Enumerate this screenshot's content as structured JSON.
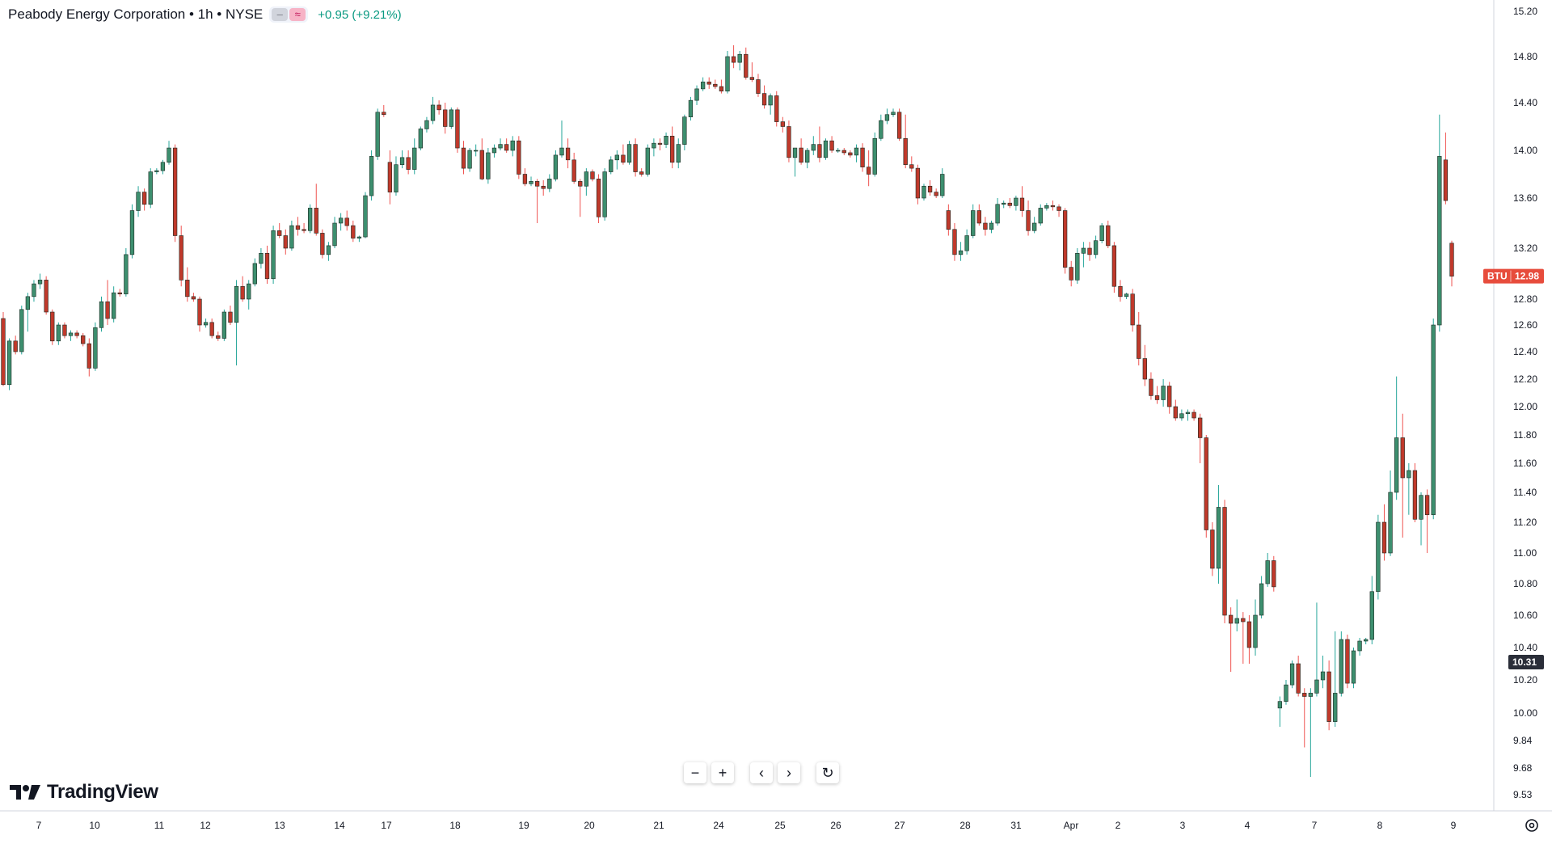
{
  "header": {
    "title": "Peabody Energy Corporation • 1h • NYSE",
    "change": "+0.95 (+9.21%)",
    "pill_icons": [
      "minus-icon",
      "approx-icon"
    ]
  },
  "logo": {
    "text": "TradingView"
  },
  "toolbar": [
    {
      "name": "zoom-out-button",
      "icon": "minus-icon",
      "glyph": "−"
    },
    {
      "name": "zoom-in-button",
      "icon": "plus-icon",
      "glyph": "+"
    },
    {
      "name": "scroll-left-button",
      "icon": "chevron-left-icon",
      "glyph": "‹"
    },
    {
      "name": "scroll-right-button",
      "icon": "chevron-right-icon",
      "glyph": "›"
    },
    {
      "name": "reset-chart-button",
      "icon": "reset-icon",
      "glyph": "↻"
    }
  ],
  "settings": {
    "icon": "gear-icon"
  },
  "chart_data": {
    "type": "candlestick",
    "symbol": "BTU",
    "interval": "1h",
    "exchange": "NYSE",
    "price_axis": {
      "ylim": [
        9.45,
        15.3
      ],
      "ticks": [
        "15.20",
        "14.80",
        "14.40",
        "14.00",
        "13.60",
        "13.20",
        "12.80",
        "12.60",
        "12.40",
        "12.20",
        "12.00",
        "11.80",
        "11.60",
        "11.40",
        "11.20",
        "11.00",
        "10.80",
        "10.60",
        "10.40",
        "10.20",
        "10.00",
        "9.84",
        "9.68",
        "9.53"
      ]
    },
    "time_axis": {
      "labels": [
        "7",
        "10",
        "11",
        "12",
        "13",
        "14",
        "17",
        "18",
        "19",
        "20",
        "21",
        "24",
        "25",
        "26",
        "27",
        "28",
        "31",
        "Apr",
        "2",
        "3",
        "4",
        "7",
        "8",
        "9"
      ]
    },
    "last_price_label": {
      "symbol": "BTU",
      "value": "12.98",
      "color": "#e74c3c"
    },
    "crosshair_price_label": {
      "value": "10.31"
    },
    "colors": {
      "up": "#26a69a",
      "down": "#ef5350",
      "up_fill": "#3d8f6f",
      "down_fill": "#c0392b"
    },
    "grid": false,
    "candles": [
      [
        12.65,
        12.7,
        12.15,
        12.16
      ],
      [
        12.16,
        12.5,
        12.12,
        12.48
      ],
      [
        12.48,
        12.52,
        12.38,
        12.4
      ],
      [
        12.4,
        12.75,
        12.38,
        12.72
      ],
      [
        12.72,
        12.85,
        12.55,
        12.82
      ],
      [
        12.82,
        12.95,
        12.78,
        12.92
      ],
      [
        12.92,
        13.0,
        12.88,
        12.95
      ],
      [
        12.95,
        12.98,
        12.68,
        12.7
      ],
      [
        12.7,
        12.72,
        12.45,
        12.48
      ],
      [
        12.48,
        12.62,
        12.45,
        12.6
      ],
      [
        12.6,
        12.62,
        12.5,
        12.52
      ],
      [
        12.52,
        12.56,
        12.48,
        12.54
      ],
      [
        12.54,
        12.56,
        12.5,
        12.52
      ],
      [
        12.52,
        12.54,
        12.44,
        12.46
      ],
      [
        12.46,
        12.5,
        12.22,
        12.28
      ],
      [
        12.28,
        12.62,
        12.26,
        12.58
      ],
      [
        12.58,
        12.82,
        12.55,
        12.78
      ],
      [
        12.78,
        12.95,
        12.6,
        12.65
      ],
      [
        12.65,
        12.9,
        12.62,
        12.85
      ],
      [
        12.85,
        12.88,
        12.82,
        12.84
      ],
      [
        12.84,
        13.2,
        12.82,
        13.15
      ],
      [
        13.15,
        13.55,
        13.12,
        13.5
      ],
      [
        13.5,
        13.7,
        13.45,
        13.65
      ],
      [
        13.65,
        13.68,
        13.5,
        13.55
      ],
      [
        13.55,
        13.85,
        13.52,
        13.82
      ],
      [
        13.82,
        13.85,
        13.8,
        13.83
      ],
      [
        13.83,
        13.92,
        13.8,
        13.9
      ],
      [
        13.9,
        14.08,
        13.88,
        14.02
      ],
      [
        14.02,
        14.05,
        13.25,
        13.3
      ],
      [
        13.3,
        13.38,
        12.9,
        12.95
      ],
      [
        12.95,
        13.05,
        12.78,
        12.82
      ],
      [
        12.82,
        12.85,
        12.78,
        12.8
      ],
      [
        12.8,
        12.82,
        12.55,
        12.6
      ],
      [
        12.6,
        12.65,
        12.58,
        12.62
      ],
      [
        12.62,
        12.65,
        12.5,
        12.52
      ],
      [
        12.52,
        12.55,
        12.48,
        12.5
      ],
      [
        12.5,
        12.72,
        12.48,
        12.7
      ],
      [
        12.7,
        12.75,
        12.6,
        12.62
      ],
      [
        12.62,
        12.95,
        12.3,
        12.9
      ],
      [
        12.9,
        12.98,
        12.78,
        12.8
      ],
      [
        12.8,
        12.95,
        12.72,
        12.92
      ],
      [
        12.92,
        13.12,
        12.9,
        13.08
      ],
      [
        13.08,
        13.2,
        13.04,
        13.16
      ],
      [
        13.16,
        13.22,
        12.92,
        12.96
      ],
      [
        12.96,
        13.38,
        12.92,
        13.34
      ],
      [
        13.34,
        13.4,
        13.28,
        13.3
      ],
      [
        13.3,
        13.35,
        13.15,
        13.2
      ],
      [
        13.2,
        13.42,
        13.18,
        13.38
      ],
      [
        13.38,
        13.45,
        13.3,
        13.35
      ],
      [
        13.35,
        13.4,
        13.32,
        13.34
      ],
      [
        13.34,
        13.55,
        13.32,
        13.52
      ],
      [
        13.52,
        13.72,
        13.3,
        13.32
      ],
      [
        13.32,
        13.35,
        13.12,
        13.15
      ],
      [
        13.15,
        13.25,
        13.1,
        13.22
      ],
      [
        13.22,
        13.45,
        13.2,
        13.4
      ],
      [
        13.4,
        13.48,
        13.34,
        13.44
      ],
      [
        13.44,
        13.5,
        13.34,
        13.38
      ],
      [
        13.38,
        13.42,
        13.25,
        13.28
      ],
      [
        13.28,
        13.3,
        13.25,
        13.29
      ],
      [
        13.29,
        13.65,
        13.28,
        13.62
      ],
      [
        13.62,
        14.0,
        13.58,
        13.95
      ],
      [
        13.95,
        14.35,
        13.92,
        14.32
      ],
      [
        14.32,
        14.38,
        14.28,
        14.3
      ],
      [
        13.9,
        14.0,
        13.55,
        13.65
      ],
      [
        13.65,
        13.95,
        13.62,
        13.88
      ],
      [
        13.88,
        14.0,
        13.85,
        13.94
      ],
      [
        13.94,
        14.0,
        13.8,
        13.84
      ],
      [
        13.84,
        14.1,
        13.8,
        14.02
      ],
      [
        14.02,
        14.2,
        14.0,
        14.18
      ],
      [
        14.18,
        14.28,
        14.15,
        14.25
      ],
      [
        14.25,
        14.45,
        14.22,
        14.38
      ],
      [
        14.38,
        14.42,
        14.3,
        14.34
      ],
      [
        14.34,
        14.4,
        14.14,
        14.2
      ],
      [
        14.2,
        14.36,
        14.18,
        14.34
      ],
      [
        14.34,
        14.36,
        13.98,
        14.02
      ],
      [
        14.02,
        14.08,
        13.8,
        13.85
      ],
      [
        13.85,
        14.02,
        13.82,
        14.0
      ],
      [
        14.0,
        14.05,
        13.95,
        14.0
      ],
      [
        14.0,
        14.1,
        13.75,
        13.76
      ],
      [
        13.76,
        14.02,
        13.72,
        13.98
      ],
      [
        13.98,
        14.05,
        13.94,
        14.02
      ],
      [
        14.02,
        14.1,
        14.0,
        14.05
      ],
      [
        14.05,
        14.1,
        13.98,
        14.0
      ],
      [
        14.0,
        14.12,
        13.95,
        14.08
      ],
      [
        14.08,
        14.12,
        13.76,
        13.8
      ],
      [
        13.8,
        13.85,
        13.7,
        13.72
      ],
      [
        13.72,
        13.78,
        13.7,
        13.74
      ],
      [
        13.74,
        13.76,
        13.4,
        13.7
      ],
      [
        13.7,
        13.75,
        13.62,
        13.68
      ],
      [
        13.68,
        13.8,
        13.65,
        13.76
      ],
      [
        13.76,
        14.0,
        13.74,
        13.96
      ],
      [
        13.96,
        14.25,
        13.94,
        14.02
      ],
      [
        14.02,
        14.1,
        13.85,
        13.92
      ],
      [
        13.92,
        13.98,
        13.72,
        13.74
      ],
      [
        13.74,
        13.76,
        13.45,
        13.7
      ],
      [
        13.7,
        13.85,
        13.62,
        13.82
      ],
      [
        13.82,
        13.84,
        13.74,
        13.76
      ],
      [
        13.76,
        13.8,
        13.4,
        13.45
      ],
      [
        13.45,
        13.85,
        13.42,
        13.82
      ],
      [
        13.82,
        13.95,
        13.8,
        13.92
      ],
      [
        13.92,
        14.0,
        13.84,
        13.96
      ],
      [
        13.96,
        14.05,
        13.88,
        13.9
      ],
      [
        13.9,
        14.08,
        13.88,
        14.05
      ],
      [
        14.05,
        14.1,
        13.78,
        13.82
      ],
      [
        13.82,
        13.85,
        13.78,
        13.8
      ],
      [
        13.8,
        14.05,
        13.78,
        14.02
      ],
      [
        14.02,
        14.1,
        13.95,
        14.06
      ],
      [
        14.06,
        14.1,
        14.0,
        14.05
      ],
      [
        14.05,
        14.15,
        14.02,
        14.12
      ],
      [
        14.12,
        14.2,
        13.85,
        13.9
      ],
      [
        13.9,
        14.1,
        13.85,
        14.05
      ],
      [
        14.05,
        14.3,
        14.0,
        14.28
      ],
      [
        14.28,
        14.45,
        14.25,
        14.42
      ],
      [
        14.42,
        14.55,
        14.38,
        14.52
      ],
      [
        14.52,
        14.62,
        14.5,
        14.58
      ],
      [
        14.58,
        14.62,
        14.52,
        14.56
      ],
      [
        14.56,
        14.6,
        14.52,
        14.54
      ],
      [
        14.54,
        14.6,
        14.48,
        14.5
      ],
      [
        14.5,
        14.85,
        14.48,
        14.8
      ],
      [
        14.8,
        14.9,
        14.7,
        14.75
      ],
      [
        14.75,
        14.85,
        14.68,
        14.82
      ],
      [
        14.82,
        14.88,
        14.6,
        14.62
      ],
      [
        14.62,
        14.75,
        14.58,
        14.6
      ],
      [
        14.6,
        14.65,
        14.45,
        14.48
      ],
      [
        14.48,
        14.55,
        14.35,
        14.38
      ],
      [
        14.38,
        14.48,
        14.3,
        14.46
      ],
      [
        14.46,
        14.5,
        14.2,
        14.24
      ],
      [
        14.24,
        14.28,
        14.15,
        14.2
      ],
      [
        14.2,
        14.25,
        13.9,
        13.94
      ],
      [
        13.94,
        14.0,
        13.78,
        14.02
      ],
      [
        14.02,
        14.1,
        13.88,
        13.9
      ],
      [
        13.9,
        14.02,
        13.85,
        14.0
      ],
      [
        14.0,
        14.12,
        13.96,
        14.05
      ],
      [
        14.05,
        14.2,
        13.9,
        13.94
      ],
      [
        13.94,
        14.1,
        13.92,
        14.08
      ],
      [
        14.08,
        14.12,
        13.98,
        14.0
      ],
      [
        14.0,
        14.02,
        13.98,
        14.0
      ],
      [
        14.0,
        14.02,
        13.96,
        13.98
      ],
      [
        13.98,
        14.0,
        13.94,
        13.96
      ],
      [
        13.96,
        14.05,
        13.9,
        14.02
      ],
      [
        14.02,
        14.06,
        13.82,
        13.86
      ],
      [
        13.86,
        14.0,
        13.7,
        13.8
      ],
      [
        13.8,
        14.15,
        13.78,
        14.1
      ],
      [
        14.1,
        14.3,
        14.08,
        14.25
      ],
      [
        14.25,
        14.35,
        14.22,
        14.3
      ],
      [
        14.3,
        14.35,
        14.28,
        14.32
      ],
      [
        14.32,
        14.35,
        14.08,
        14.1
      ],
      [
        14.1,
        14.3,
        13.85,
        13.88
      ],
      [
        13.88,
        13.95,
        13.82,
        13.85
      ],
      [
        13.85,
        13.88,
        13.55,
        13.6
      ],
      [
        13.6,
        13.72,
        13.58,
        13.7
      ],
      [
        13.7,
        13.75,
        13.62,
        13.65
      ],
      [
        13.65,
        13.68,
        13.6,
        13.62
      ],
      [
        13.62,
        13.85,
        13.6,
        13.8
      ],
      [
        13.5,
        13.55,
        13.3,
        13.35
      ],
      [
        13.35,
        13.4,
        13.1,
        13.15
      ],
      [
        13.15,
        13.25,
        13.1,
        13.18
      ],
      [
        13.18,
        13.35,
        13.15,
        13.3
      ],
      [
        13.3,
        13.55,
        13.28,
        13.5
      ],
      [
        13.5,
        13.55,
        13.38,
        13.4
      ],
      [
        13.4,
        13.45,
        13.3,
        13.35
      ],
      [
        13.35,
        13.42,
        13.32,
        13.4
      ],
      [
        13.4,
        13.6,
        13.38,
        13.55
      ],
      [
        13.55,
        13.58,
        13.52,
        13.56
      ],
      [
        13.56,
        13.6,
        13.52,
        13.54
      ],
      [
        13.54,
        13.62,
        13.5,
        13.6
      ],
      [
        13.6,
        13.7,
        13.45,
        13.5
      ],
      [
        13.5,
        13.58,
        13.3,
        13.34
      ],
      [
        13.34,
        13.45,
        13.32,
        13.4
      ],
      [
        13.4,
        13.55,
        13.38,
        13.52
      ],
      [
        13.52,
        13.56,
        13.5,
        13.54
      ],
      [
        13.54,
        13.58,
        13.5,
        13.53
      ],
      [
        13.53,
        13.55,
        13.45,
        13.5
      ],
      [
        13.5,
        13.52,
        13.0,
        13.05
      ],
      [
        13.05,
        13.1,
        12.9,
        12.95
      ],
      [
        12.95,
        13.2,
        12.92,
        13.16
      ],
      [
        13.16,
        13.25,
        13.05,
        13.2
      ],
      [
        13.2,
        13.25,
        13.1,
        13.15
      ],
      [
        13.15,
        13.3,
        13.12,
        13.26
      ],
      [
        13.26,
        13.4,
        13.24,
        13.38
      ],
      [
        13.38,
        13.42,
        13.2,
        13.22
      ],
      [
        13.22,
        13.25,
        12.85,
        12.9
      ],
      [
        12.9,
        12.95,
        12.78,
        12.82
      ],
      [
        12.82,
        12.85,
        12.8,
        12.84
      ],
      [
        12.84,
        12.88,
        12.55,
        12.6
      ],
      [
        12.6,
        12.7,
        12.3,
        12.35
      ],
      [
        12.35,
        12.45,
        12.15,
        12.2
      ],
      [
        12.2,
        12.25,
        12.05,
        12.08
      ],
      [
        12.08,
        12.15,
        12.02,
        12.05
      ],
      [
        12.05,
        12.2,
        12.0,
        12.15
      ],
      [
        12.15,
        12.18,
        11.95,
        12.0
      ],
      [
        12.0,
        12.05,
        11.9,
        11.92
      ],
      [
        11.92,
        11.98,
        11.9,
        11.95
      ],
      [
        11.95,
        11.98,
        11.9,
        11.96
      ],
      [
        11.96,
        11.98,
        11.9,
        11.92
      ],
      [
        11.92,
        11.95,
        11.6,
        11.78
      ],
      [
        11.78,
        11.8,
        11.1,
        11.15
      ],
      [
        11.15,
        11.2,
        10.85,
        10.9
      ],
      [
        10.9,
        11.45,
        10.8,
        11.3
      ],
      [
        11.3,
        11.35,
        10.55,
        10.6
      ],
      [
        10.6,
        10.65,
        10.25,
        10.55
      ],
      [
        10.55,
        10.7,
        10.5,
        10.58
      ],
      [
        10.58,
        10.62,
        10.3,
        10.56
      ],
      [
        10.56,
        10.6,
        10.3,
        10.4
      ],
      [
        10.4,
        10.7,
        10.35,
        10.6
      ],
      [
        10.6,
        10.85,
        10.58,
        10.8
      ],
      [
        10.8,
        11.0,
        10.78,
        10.95
      ],
      [
        10.95,
        10.98,
        10.75,
        10.78
      ],
      [
        10.03,
        10.1,
        9.92,
        10.07
      ],
      [
        10.07,
        10.2,
        10.05,
        10.17
      ],
      [
        10.17,
        10.32,
        10.15,
        10.3
      ],
      [
        10.3,
        10.35,
        10.1,
        10.12
      ],
      [
        10.12,
        10.15,
        9.8,
        10.1
      ],
      [
        10.1,
        10.15,
        9.63,
        10.12
      ],
      [
        10.12,
        10.68,
        10.1,
        10.2
      ],
      [
        10.2,
        10.35,
        10.15,
        10.25
      ],
      [
        10.25,
        10.32,
        9.9,
        9.95
      ],
      [
        9.95,
        10.5,
        9.92,
        10.12
      ],
      [
        10.12,
        10.5,
        10.1,
        10.45
      ],
      [
        10.45,
        10.48,
        10.15,
        10.18
      ],
      [
        10.18,
        10.4,
        10.15,
        10.38
      ],
      [
        10.38,
        10.46,
        10.35,
        10.44
      ],
      [
        10.44,
        10.46,
        10.42,
        10.45
      ],
      [
        10.45,
        10.85,
        10.42,
        10.75
      ],
      [
        10.75,
        11.25,
        10.7,
        11.2
      ],
      [
        11.2,
        11.32,
        10.95,
        11.0
      ],
      [
        11.0,
        11.55,
        10.98,
        11.4
      ],
      [
        11.4,
        12.22,
        11.35,
        11.78
      ],
      [
        11.78,
        11.95,
        11.1,
        11.5
      ],
      [
        11.5,
        11.6,
        11.25,
        11.55
      ],
      [
        11.55,
        11.6,
        11.2,
        11.22
      ],
      [
        11.22,
        11.4,
        11.05,
        11.38
      ],
      [
        11.38,
        11.42,
        11.0,
        11.25
      ],
      [
        11.25,
        12.65,
        11.22,
        12.6
      ],
      [
        12.6,
        14.3,
        12.55,
        13.95
      ],
      [
        13.92,
        14.15,
        13.55,
        13.58
      ],
      [
        13.24,
        13.26,
        12.9,
        12.98
      ]
    ]
  }
}
